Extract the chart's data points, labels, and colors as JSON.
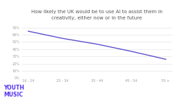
{
  "title": "How likely the UK would be to use AI to assist them in\ncreativity, either now or in the future",
  "categories": [
    "16 - 24",
    "25 - 34",
    "35 - 44",
    "45 - 54",
    "55 +"
  ],
  "values": [
    65,
    55,
    47,
    37,
    26
  ],
  "line_color": "#5b4fcf",
  "background_color": "#ffffff",
  "grid_color": "#dddddd",
  "title_color": "#555555",
  "tick_color": "#999999",
  "ylim": [
    0,
    75
  ],
  "yticks": [
    0,
    10,
    20,
    30,
    40,
    50,
    60,
    70
  ],
  "title_fontsize": 5.0,
  "tick_fontsize": 3.5,
  "logo_text": "YOUTH\nMUSIC",
  "logo_color": "#5533ee",
  "logo_fontsize": 5.5
}
